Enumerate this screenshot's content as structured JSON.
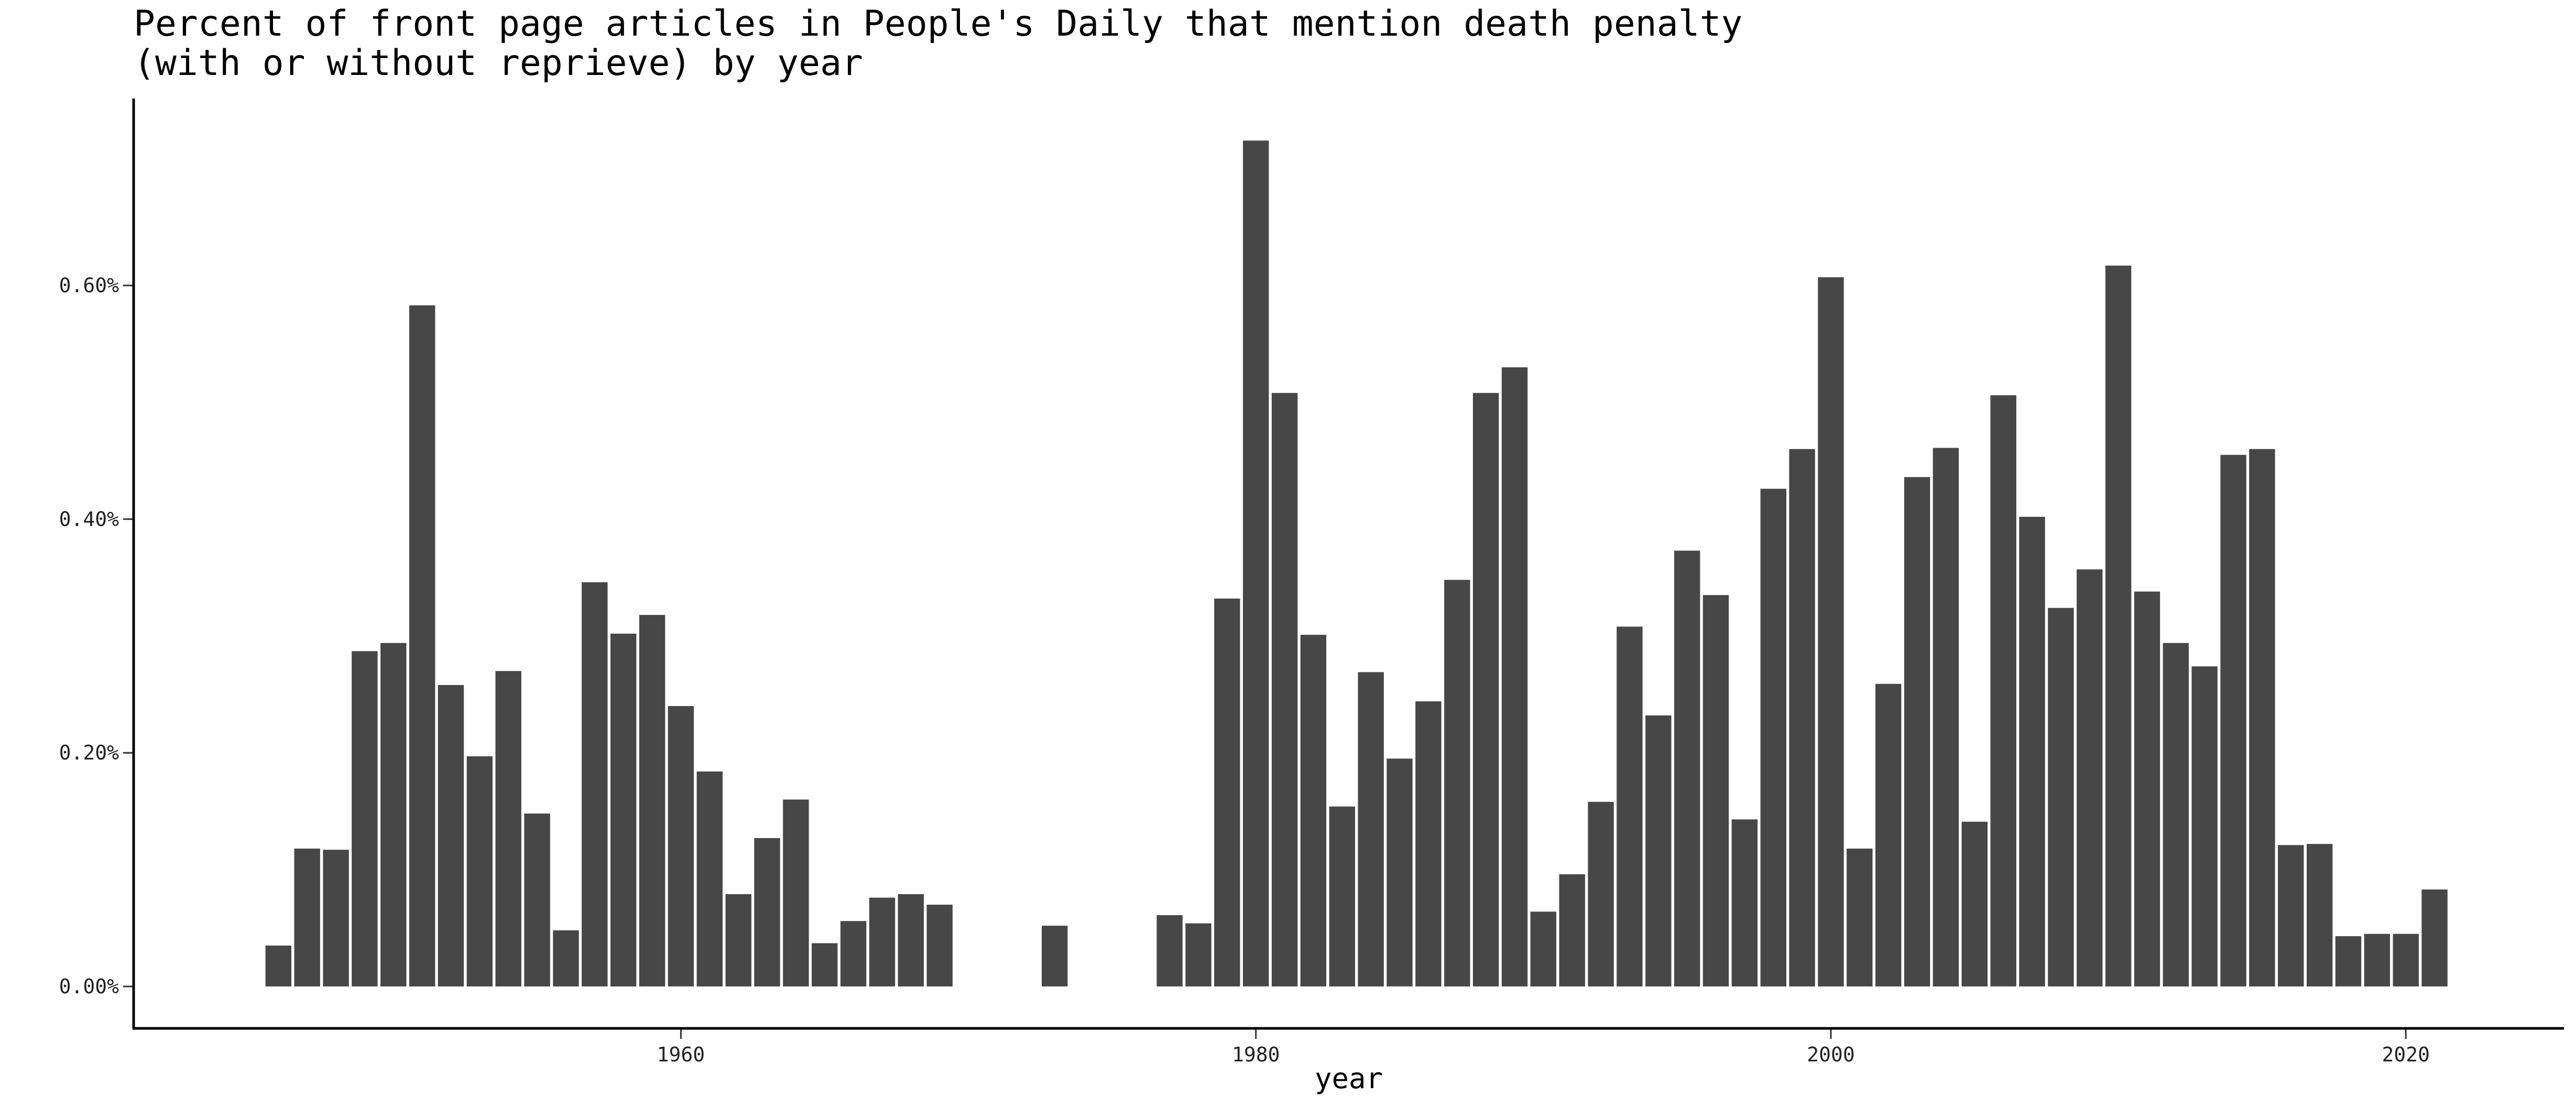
{
  "chart_data": {
    "type": "bar",
    "title": "Percent of front page articles in People's Daily that mention death penalty",
    "subtitle": "(with or without reprieve) by year",
    "xlabel": "year",
    "ylabel": "",
    "x_ticks": [
      1960,
      1980,
      2000,
      2020
    ],
    "y_ticks": [
      "0.00%",
      "0.20%",
      "0.40%",
      "0.60%"
    ],
    "y_tick_values": [
      0,
      0.2,
      0.4,
      0.6
    ],
    "xlim": [
      1941,
      2025.5
    ],
    "ylim": [
      -0.035,
      0.76
    ],
    "grid": false,
    "bar_color": "#474747",
    "unit": "%",
    "x": [
      1946,
      1947,
      1948,
      1949,
      1950,
      1951,
      1952,
      1953,
      1954,
      1955,
      1956,
      1957,
      1958,
      1959,
      1960,
      1961,
      1962,
      1963,
      1964,
      1965,
      1966,
      1967,
      1968,
      1969,
      1973,
      1977,
      1978,
      1979,
      1980,
      1981,
      1982,
      1983,
      1984,
      1985,
      1986,
      1987,
      1988,
      1989,
      1990,
      1991,
      1992,
      1993,
      1994,
      1995,
      1996,
      1997,
      1998,
      1999,
      2000,
      2001,
      2002,
      2003,
      2004,
      2005,
      2006,
      2007,
      2008,
      2009,
      2010,
      2011,
      2012,
      2013,
      2014,
      2015,
      2016,
      2017,
      2018,
      2019,
      2020,
      2021
    ],
    "values": [
      0.035,
      0.118,
      0.117,
      0.287,
      0.294,
      0.583,
      0.258,
      0.197,
      0.27,
      0.148,
      0.048,
      0.346,
      0.302,
      0.318,
      0.24,
      0.184,
      0.079,
      0.127,
      0.16,
      0.037,
      0.056,
      0.076,
      0.079,
      0.07,
      0.052,
      0.061,
      0.054,
      0.332,
      0.724,
      0.508,
      0.301,
      0.154,
      0.269,
      0.195,
      0.244,
      0.348,
      0.508,
      0.53,
      0.064,
      0.096,
      0.158,
      0.308,
      0.232,
      0.373,
      0.335,
      0.143,
      0.426,
      0.46,
      0.607,
      0.118,
      0.259,
      0.436,
      0.461,
      0.141,
      0.506,
      0.402,
      0.324,
      0.357,
      0.617,
      0.338,
      0.294,
      0.274,
      0.455,
      0.46,
      0.121,
      0.122,
      0.043,
      0.045,
      0.045,
      0.083
    ]
  }
}
